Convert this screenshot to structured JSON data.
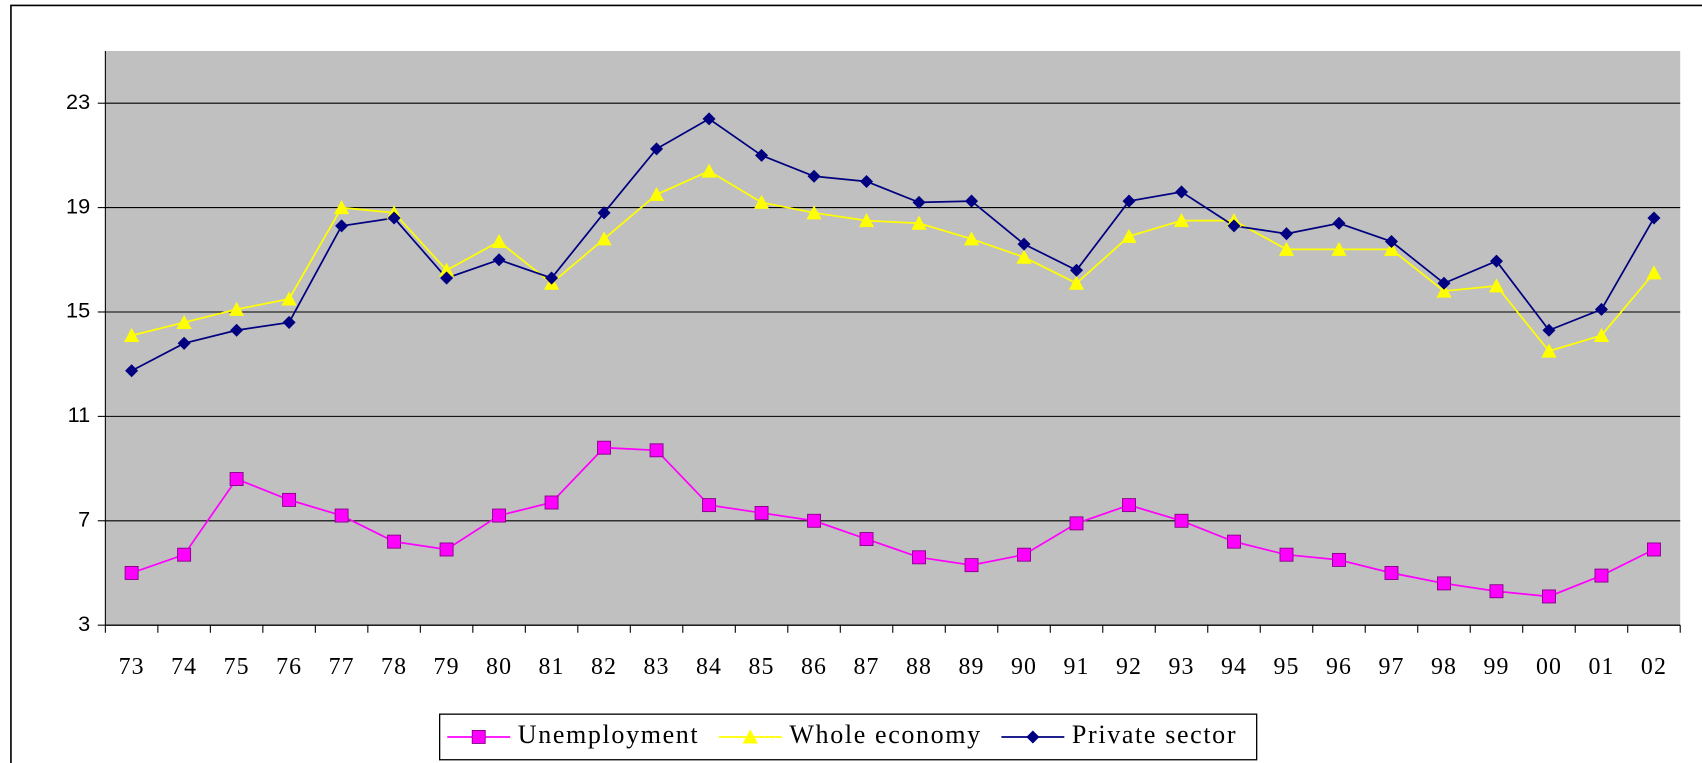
{
  "chart_data": {
    "type": "line",
    "categories": [
      "73",
      "74",
      "75",
      "76",
      "77",
      "78",
      "79",
      "80",
      "81",
      "82",
      "83",
      "84",
      "85",
      "86",
      "87",
      "88",
      "89",
      "90",
      "91",
      "92",
      "93",
      "94",
      "95",
      "96",
      "97",
      "98",
      "99",
      "00",
      "01",
      "02"
    ],
    "series": [
      {
        "name": "Unemployment",
        "color": "#ff00ff",
        "marker": "square",
        "values": [
          5.0,
          5.7,
          8.6,
          7.8,
          7.2,
          6.2,
          5.9,
          7.2,
          7.7,
          9.8,
          9.7,
          7.6,
          7.3,
          7.0,
          6.3,
          5.6,
          5.3,
          5.7,
          6.9,
          7.6,
          7.0,
          6.2,
          5.7,
          5.5,
          5.0,
          4.6,
          4.3,
          4.1,
          4.9,
          5.9
        ]
      },
      {
        "name": "Whole economy",
        "color": "#ffff00",
        "marker": "triangle",
        "values": [
          14.1,
          14.6,
          15.1,
          15.5,
          19.0,
          18.8,
          16.6,
          17.7,
          16.1,
          17.8,
          19.5,
          20.4,
          19.2,
          18.8,
          18.5,
          18.4,
          17.8,
          17.1,
          16.1,
          17.9,
          18.5,
          18.5,
          17.4,
          17.4,
          17.4,
          15.8,
          16.0,
          13.5,
          14.1,
          16.5
        ]
      },
      {
        "name": "Private sector",
        "color": "#000080",
        "marker": "diamond",
        "values": [
          12.75,
          13.8,
          14.3,
          14.6,
          18.3,
          18.6,
          16.3,
          17.0,
          16.3,
          18.8,
          21.25,
          22.4,
          21.0,
          20.2,
          20.0,
          19.2,
          19.25,
          17.6,
          16.6,
          19.25,
          19.6,
          18.3,
          18.0,
          18.4,
          17.7,
          16.1,
          16.95,
          14.3,
          15.1,
          18.6
        ]
      }
    ],
    "ylim": [
      3,
      25
    ],
    "yticks": [
      3,
      7,
      11,
      15,
      19,
      23
    ],
    "grid": true,
    "plot_background": "#c0c0c0",
    "legend": "bottom"
  }
}
